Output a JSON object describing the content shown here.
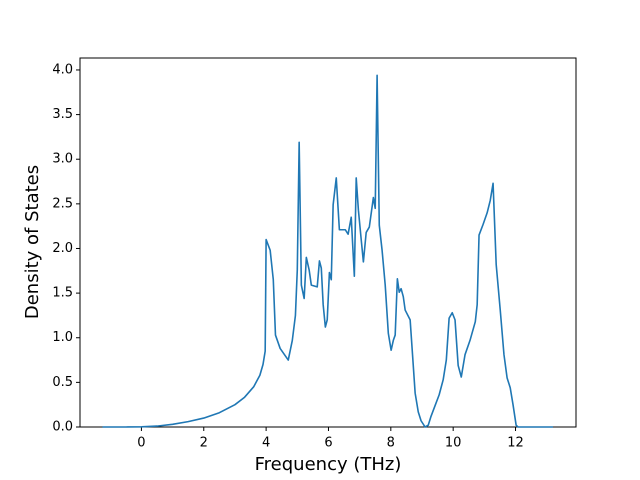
{
  "chart_data": {
    "type": "line",
    "xlabel": "Frequency (THz)",
    "ylabel": "Density of States",
    "color": "#1f77b4",
    "x": [
      -1.25,
      -0.5,
      0,
      0.5,
      1.0,
      1.5,
      2.0,
      2.5,
      3.0,
      3.3,
      3.6,
      3.8,
      3.9,
      3.97,
      4.0,
      4.13,
      4.23,
      4.3,
      4.45,
      4.71,
      4.84,
      4.94,
      5.0,
      5.06,
      5.13,
      5.22,
      5.29,
      5.38,
      5.45,
      5.64,
      5.71,
      5.77,
      5.83,
      5.9,
      5.96,
      6.03,
      6.09,
      6.15,
      6.25,
      6.35,
      6.54,
      6.63,
      6.73,
      6.83,
      6.89,
      6.96,
      7.05,
      7.12,
      7.21,
      7.31,
      7.44,
      7.5,
      7.56,
      7.63,
      7.72,
      7.82,
      7.92,
      8.01,
      8.08,
      8.14,
      8.21,
      8.27,
      8.33,
      8.4,
      8.46,
      8.62,
      8.72,
      8.78,
      8.88,
      8.97,
      9.1,
      9.2,
      9.29,
      9.42,
      9.55,
      9.68,
      9.78,
      9.87,
      9.97,
      10.06,
      10.16,
      10.26,
      10.38,
      10.54,
      10.71,
      10.77,
      10.83,
      10.96,
      11.09,
      11.19,
      11.28,
      11.38,
      11.51,
      11.63,
      11.73,
      11.83,
      11.92,
      12.02,
      12.08,
      13.2
    ],
    "values": [
      0,
      0,
      0.002,
      0.01,
      0.03,
      0.06,
      0.1,
      0.16,
      0.25,
      0.33,
      0.45,
      0.58,
      0.7,
      0.85,
      2.1,
      1.98,
      1.65,
      1.03,
      0.88,
      0.75,
      0.97,
      1.25,
      1.76,
      3.19,
      1.59,
      1.44,
      1.9,
      1.76,
      1.59,
      1.57,
      1.86,
      1.78,
      1.37,
      1.12,
      1.2,
      1.73,
      1.65,
      2.49,
      2.79,
      2.21,
      2.21,
      2.16,
      2.35,
      1.69,
      2.79,
      2.43,
      2.1,
      1.85,
      2.18,
      2.24,
      2.57,
      2.45,
      3.94,
      2.26,
      1.98,
      1.59,
      1.05,
      0.86,
      0.97,
      1.03,
      1.66,
      1.51,
      1.55,
      1.46,
      1.31,
      1.2,
      0.69,
      0.38,
      0.17,
      0.07,
      0,
      0.02,
      0.12,
      0.24,
      0.36,
      0.53,
      0.75,
      1.22,
      1.28,
      1.2,
      0.69,
      0.56,
      0.81,
      0.97,
      1.18,
      1.37,
      2.15,
      2.27,
      2.4,
      2.54,
      2.73,
      1.82,
      1.31,
      0.81,
      0.55,
      0.44,
      0.25,
      0.02,
      0,
      0
    ],
    "xlim": [
      -1.97,
      13.94
    ],
    "ylim": [
      0,
      4.134
    ],
    "xticks": [
      0,
      2,
      4,
      6,
      8,
      10,
      12
    ],
    "yticks": [
      {
        "value": 0,
        "label": "0.0"
      },
      {
        "value": 0.5,
        "label": "0.5"
      },
      {
        "value": 1,
        "label": "1.0"
      },
      {
        "value": 1.5,
        "label": "1.5"
      },
      {
        "value": 2,
        "label": "2.0"
      },
      {
        "value": 2.5,
        "label": "2.5"
      },
      {
        "value": 3,
        "label": "3.0"
      },
      {
        "value": 3.5,
        "label": "3.5"
      },
      {
        "value": 4,
        "label": "4.0"
      }
    ]
  }
}
